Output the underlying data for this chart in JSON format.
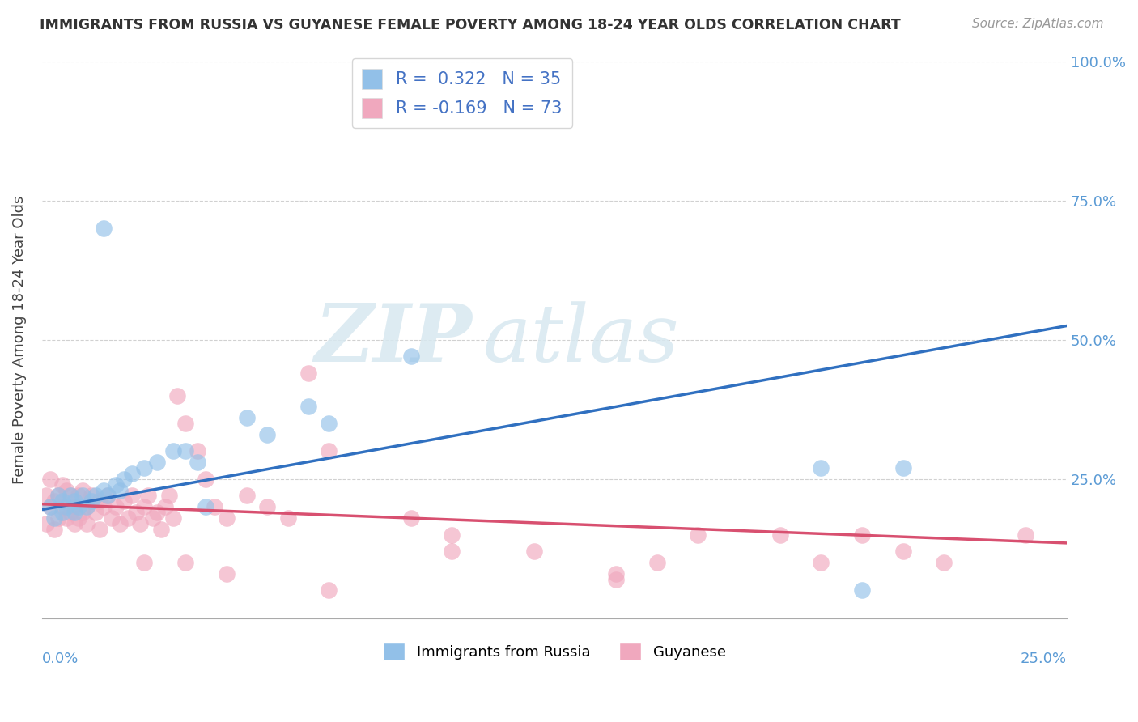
{
  "title": "IMMIGRANTS FROM RUSSIA VS GUYANESE FEMALE POVERTY AMONG 18-24 YEAR OLDS CORRELATION CHART",
  "source": "Source: ZipAtlas.com",
  "ylabel": "Female Poverty Among 18-24 Year Olds",
  "xlim": [
    0.0,
    0.25
  ],
  "ylim": [
    0.0,
    1.0
  ],
  "blue_R": 0.322,
  "blue_N": 35,
  "pink_R": -0.169,
  "pink_N": 73,
  "blue_color": "#92c0e8",
  "pink_color": "#f0a8be",
  "blue_line_color": "#3070c0",
  "pink_line_color": "#d85070",
  "watermark_zip": "ZIP",
  "watermark_atlas": "atlas",
  "legend_label_blue": "Immigrants from Russia",
  "legend_label_pink": "Guyanese",
  "blue_line_x0": 0.0,
  "blue_line_y0": 0.195,
  "blue_line_x1": 0.25,
  "blue_line_y1": 0.525,
  "pink_line_x0": 0.0,
  "pink_line_y0": 0.205,
  "pink_line_x1": 0.25,
  "pink_line_y1": 0.135,
  "blue_scatter_x": [
    0.002,
    0.003,
    0.004,
    0.005,
    0.005,
    0.006,
    0.007,
    0.008,
    0.008,
    0.009,
    0.01,
    0.011,
    0.012,
    0.013,
    0.015,
    0.016,
    0.018,
    0.019,
    0.02,
    0.022,
    0.025,
    0.028,
    0.032,
    0.035,
    0.038,
    0.05,
    0.055,
    0.065,
    0.07,
    0.09,
    0.19,
    0.2,
    0.21,
    0.015,
    0.04
  ],
  "blue_scatter_y": [
    0.2,
    0.18,
    0.22,
    0.19,
    0.21,
    0.2,
    0.22,
    0.19,
    0.21,
    0.2,
    0.22,
    0.2,
    0.21,
    0.22,
    0.23,
    0.22,
    0.24,
    0.23,
    0.25,
    0.26,
    0.27,
    0.28,
    0.3,
    0.3,
    0.28,
    0.36,
    0.33,
    0.38,
    0.35,
    0.47,
    0.27,
    0.05,
    0.27,
    0.7,
    0.2
  ],
  "pink_scatter_x": [
    0.001,
    0.001,
    0.002,
    0.002,
    0.003,
    0.003,
    0.004,
    0.004,
    0.005,
    0.005,
    0.006,
    0.006,
    0.007,
    0.007,
    0.008,
    0.008,
    0.009,
    0.009,
    0.01,
    0.01,
    0.011,
    0.011,
    0.012,
    0.013,
    0.014,
    0.014,
    0.015,
    0.016,
    0.017,
    0.018,
    0.019,
    0.02,
    0.021,
    0.022,
    0.023,
    0.024,
    0.025,
    0.026,
    0.027,
    0.028,
    0.029,
    0.03,
    0.031,
    0.032,
    0.033,
    0.035,
    0.038,
    0.04,
    0.042,
    0.045,
    0.05,
    0.055,
    0.06,
    0.065,
    0.07,
    0.09,
    0.1,
    0.12,
    0.14,
    0.16,
    0.18,
    0.19,
    0.2,
    0.21,
    0.22,
    0.14,
    0.025,
    0.035,
    0.045,
    0.07,
    0.1,
    0.15,
    0.24
  ],
  "pink_scatter_y": [
    0.22,
    0.17,
    0.2,
    0.25,
    0.21,
    0.16,
    0.22,
    0.18,
    0.2,
    0.24,
    0.18,
    0.23,
    0.19,
    0.22,
    0.2,
    0.17,
    0.22,
    0.18,
    0.19,
    0.23,
    0.2,
    0.17,
    0.22,
    0.19,
    0.21,
    0.16,
    0.2,
    0.22,
    0.18,
    0.2,
    0.17,
    0.21,
    0.18,
    0.22,
    0.19,
    0.17,
    0.2,
    0.22,
    0.18,
    0.19,
    0.16,
    0.2,
    0.22,
    0.18,
    0.4,
    0.35,
    0.3,
    0.25,
    0.2,
    0.18,
    0.22,
    0.2,
    0.18,
    0.44,
    0.3,
    0.18,
    0.15,
    0.12,
    0.08,
    0.15,
    0.15,
    0.1,
    0.15,
    0.12,
    0.1,
    0.07,
    0.1,
    0.1,
    0.08,
    0.05,
    0.12,
    0.1,
    0.15
  ]
}
